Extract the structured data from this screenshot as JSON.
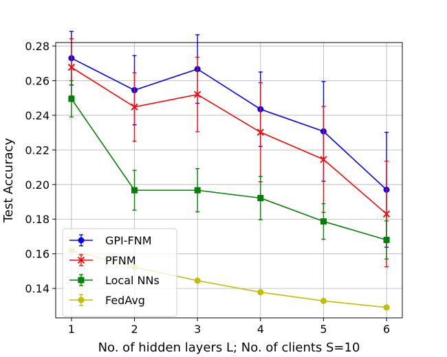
{
  "chart_data": {
    "type": "line",
    "xlabel": "No. of hidden layers L; No. of clients S=10",
    "ylabel": "Test Accuracy",
    "xlim": [
      0.75,
      6.25
    ],
    "ylim": [
      0.123,
      0.282
    ],
    "xticks": [
      1,
      2,
      3,
      4,
      5,
      6
    ],
    "yticks": [
      0.14,
      0.16,
      0.18,
      0.2,
      0.22,
      0.24,
      0.26,
      0.28
    ],
    "ytick_labels": [
      "0.14",
      "0.16",
      "0.18",
      "0.20",
      "0.22",
      "0.24",
      "0.26",
      "0.28"
    ],
    "grid": true,
    "legend_position": "lower-left",
    "x": [
      1,
      2,
      3,
      4,
      5,
      6
    ],
    "series": [
      {
        "name": "GPI-FNM",
        "color": "#0000ff",
        "marker": "circle",
        "values": [
          0.273,
          0.2545,
          0.2667,
          0.2435,
          0.2307,
          0.197
        ],
        "errors": [
          0.0155,
          0.02,
          0.0198,
          0.0215,
          0.0288,
          0.0332
        ]
      },
      {
        "name": "PFNM",
        "color": "#ff0000",
        "marker": "x",
        "values": [
          0.2677,
          0.2448,
          0.252,
          0.2302,
          0.2145,
          0.183
        ],
        "errors": [
          0.0165,
          0.0198,
          0.0215,
          0.0286,
          0.0306,
          0.0305
        ]
      },
      {
        "name": "Local NNs",
        "color": "#008000",
        "marker": "square",
        "values": [
          0.2495,
          0.1967,
          0.1967,
          0.1922,
          0.1787,
          0.168
        ],
        "errors": [
          0.0105,
          0.0115,
          0.0125,
          0.0125,
          0.0103,
          0.011
        ]
      },
      {
        "name": "FedAvg",
        "color": "#bfbf00",
        "marker": "circle",
        "values": [
          0.162,
          0.1523,
          0.1445,
          0.1378,
          0.1328,
          0.129
        ],
        "errors": [
          0.0,
          0.0,
          0.0,
          0.0,
          0.0,
          0.0
        ]
      }
    ]
  }
}
